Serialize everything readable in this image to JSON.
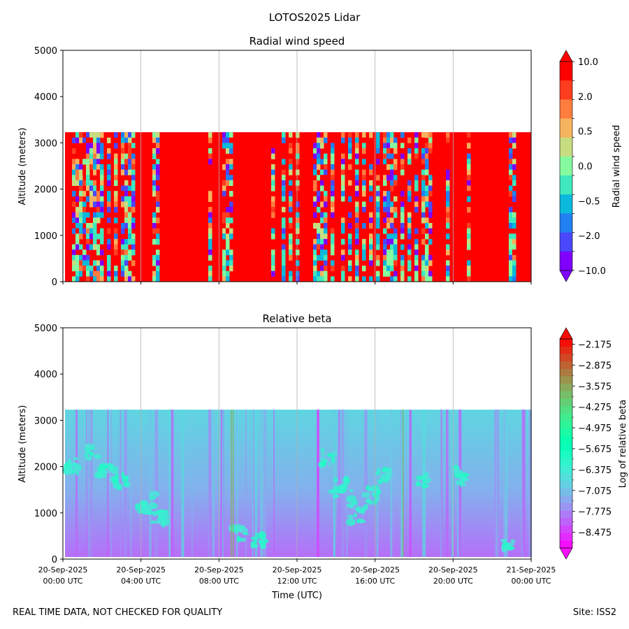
{
  "suptitle": "LOTOS2025 Lidar",
  "footer": {
    "left": "REAL TIME DATA, NOT CHECKED FOR QUALITY",
    "right": "Site: ISS2"
  },
  "chart_data": [
    {
      "type": "heatmap",
      "title": "Radial wind speed",
      "ylabel": "Altitude (meters)",
      "ylim": [
        0,
        5000
      ],
      "yticks": [
        "0",
        "1000",
        "2000",
        "3000",
        "4000",
        "5000"
      ],
      "data_top_altitude": 3230,
      "x_ticks_hours": [
        0,
        4,
        8,
        12,
        16,
        20,
        24
      ],
      "grid": "vertical",
      "colorbar": {
        "label": "Radial wind speed",
        "tick_labels": [
          "10.0",
          "2.0",
          "0.5",
          "0.0",
          "−0.5",
          "−2.0",
          "−10.0"
        ],
        "colors": [
          "#ff0000",
          "#fe3d1f",
          "#fe7d3f",
          "#f6b35f",
          "#c8dd80",
          "#86fa9e",
          "#3fe8bd",
          "#0ab9dc",
          "#2180f2",
          "#4a48fc",
          "#8000ff"
        ]
      }
    },
    {
      "type": "heatmap",
      "title": "Relative beta",
      "ylabel": "Altitude (meters)",
      "xlabel": "Time (UTC)",
      "ylim": [
        0,
        5000
      ],
      "yticks": [
        "0",
        "1000",
        "2000",
        "3000",
        "4000",
        "5000"
      ],
      "data_top_altitude": 3230,
      "x_ticks": [
        {
          "date": "20-Sep-2025",
          "time": "00:00 UTC"
        },
        {
          "date": "20-Sep-2025",
          "time": "04:00 UTC"
        },
        {
          "date": "20-Sep-2025",
          "time": "08:00 UTC"
        },
        {
          "date": "20-Sep-2025",
          "time": "12:00 UTC"
        },
        {
          "date": "20-Sep-2025",
          "time": "16:00 UTC"
        },
        {
          "date": "20-Sep-2025",
          "time": "20:00 UTC"
        },
        {
          "date": "21-Sep-2025",
          "time": "00:00 UTC"
        }
      ],
      "grid": "vertical",
      "colorbar": {
        "label": "Log of relative beta",
        "tick_labels": [
          "−2.175",
          "−2.875",
          "−3.575",
          "−4.275",
          "−4.975",
          "−5.675",
          "−6.375",
          "−7.075",
          "−7.775",
          "−8.475"
        ],
        "tick_values": [
          -2.175,
          -2.875,
          -3.575,
          -4.275,
          -4.975,
          -5.675,
          -6.375,
          -7.075,
          -7.775,
          -8.475
        ],
        "range": [
          -9.0,
          -2.0
        ]
      }
    }
  ]
}
